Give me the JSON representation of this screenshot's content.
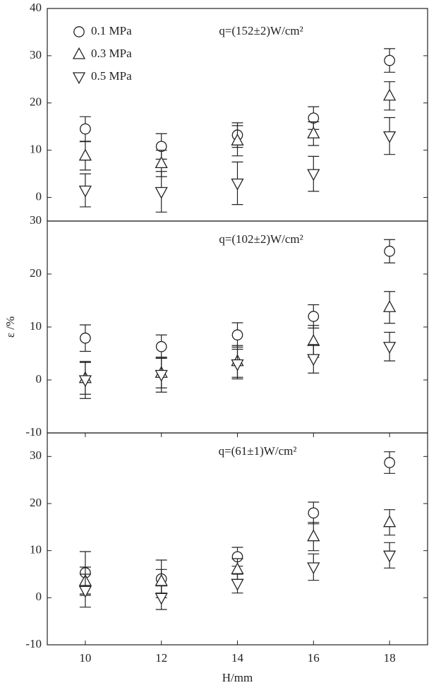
{
  "chart_data": [
    {
      "type": "scatter",
      "annotation": "q=(152±2)W/cm²",
      "legend": "upper left",
      "x": [
        10,
        12,
        14,
        16,
        18
      ],
      "xlim": [
        9,
        19
      ],
      "ylim": [
        -5,
        40
      ],
      "yticks": [
        0,
        10,
        20,
        30,
        40
      ],
      "series": [
        {
          "name": "0.1 MPa",
          "marker": "circle",
          "color": "#222222",
          "values": [
            14.5,
            10.8,
            13.2,
            16.8,
            29
          ],
          "errors": [
            2.6,
            2.7,
            2.6,
            2.4,
            2.5
          ]
        },
        {
          "name": "0.3 MPa",
          "marker": "triangle-up",
          "color": "#222222",
          "values": [
            8.8,
            7.2,
            12,
            13.5,
            21.5
          ],
          "errors": [
            3,
            2.8,
            3.2,
            2.5,
            3
          ]
        },
        {
          "name": "0.5 MPa",
          "marker": "triangle-down",
          "color": "#222222",
          "values": [
            1.5,
            1.2,
            3,
            5,
            13
          ],
          "errors": [
            3.5,
            4.3,
            4.5,
            3.7,
            3.9
          ]
        }
      ]
    },
    {
      "type": "scatter",
      "annotation": "q=(102±2)W/cm²",
      "ylabel": "ε /%",
      "x": [
        10,
        12,
        14,
        16,
        18
      ],
      "xlim": [
        9,
        19
      ],
      "ylim": [
        -10,
        30
      ],
      "yticks": [
        -10,
        0,
        10,
        20,
        30
      ],
      "series": [
        {
          "marker": "circle",
          "color": "#222222",
          "values": [
            7.9,
            6.3,
            8.5,
            12,
            24.3
          ],
          "errors": [
            2.5,
            2.2,
            2.3,
            2.2,
            2.2
          ]
        },
        {
          "marker": "triangle-up",
          "color": "#222222",
          "values": [
            0.3,
            1.3,
            3.5,
            7.3,
            13.7
          ],
          "errors": [
            3,
            2.8,
            3,
            3,
            3
          ]
        },
        {
          "marker": "triangle-down",
          "color": "#222222",
          "values": [
            0,
            1,
            3,
            4,
            6.3
          ],
          "errors": [
            3.5,
            3.3,
            2.8,
            2.7,
            2.7
          ]
        }
      ]
    },
    {
      "type": "scatter",
      "annotation": "q=(61±1)W/cm²",
      "xlabel": "H/mm",
      "x": [
        10,
        12,
        14,
        16,
        18
      ],
      "xlim": [
        9,
        19
      ],
      "xticks": [
        10,
        12,
        14,
        16,
        18
      ],
      "ylim": [
        -10,
        35
      ],
      "yticks": [
        -10,
        0,
        10,
        20,
        30
      ],
      "series": [
        {
          "marker": "circle",
          "color": "#222222",
          "values": [
            5.3,
            4,
            8.7,
            18,
            28.7
          ],
          "errors": [
            4.5,
            4,
            2,
            2.3,
            2.3
          ]
        },
        {
          "marker": "triangle-up",
          "color": "#222222",
          "values": [
            3.5,
            3.5,
            6,
            13,
            16
          ],
          "errors": [
            3,
            2.5,
            2.3,
            3,
            2.7
          ]
        },
        {
          "marker": "triangle-down",
          "color": "#222222",
          "values": [
            1.5,
            0,
            3,
            6.5,
            9
          ],
          "errors": [
            3.5,
            2.5,
            2,
            2.8,
            2.7
          ]
        }
      ]
    }
  ]
}
